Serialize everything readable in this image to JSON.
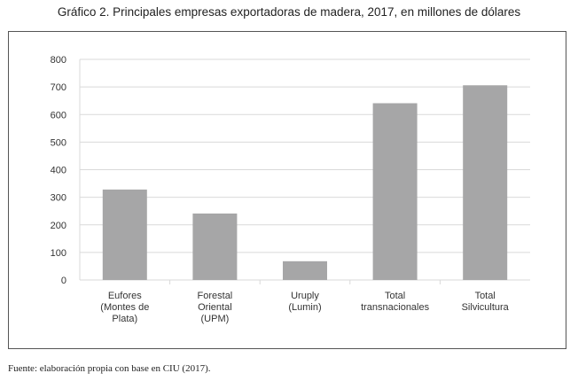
{
  "title": "Gráfico 2. Principales empresas exportadoras de madera, 2017, en millones de dólares",
  "source": "Fuente: elaboración propia con base en CIU (2017).",
  "chart_data": {
    "type": "bar",
    "categories": [
      [
        "Eufores",
        "(Montes de",
        "Plata)"
      ],
      [
        "Forestal",
        "Oriental",
        "(UPM)"
      ],
      [
        "Uruply",
        "(Lumin)"
      ],
      [
        "Total",
        "transnacionales"
      ],
      [
        "Total",
        "Silvicultura"
      ]
    ],
    "values": [
      328,
      241,
      68,
      641,
      706
    ],
    "yticks": [
      0,
      100,
      200,
      300,
      400,
      500,
      600,
      700,
      800
    ],
    "ylim": [
      0,
      800
    ],
    "grid": true,
    "bar_color": "#a6a6a7",
    "grid_color": "#d9d9d9"
  }
}
